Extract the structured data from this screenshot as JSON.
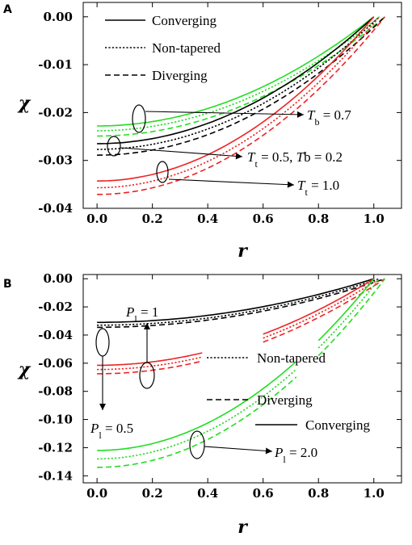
{
  "chart_data": [
    {
      "type": "line",
      "panel": "A",
      "xlabel": "r",
      "ylabel": "χ",
      "xlim": [
        -0.05,
        1.1
      ],
      "ylim": [
        -0.04,
        0.003
      ],
      "xticks": [
        "0.0",
        "0.2",
        "0.4",
        "0.6",
        "0.8",
        "1.0"
      ],
      "yticks": [
        "0.00",
        "-0.01",
        "-0.02",
        "-0.03",
        "-0.04"
      ],
      "legend": [
        {
          "label": "Converging",
          "style": "solid"
        },
        {
          "label": "Non-tapered",
          "style": "dotted"
        },
        {
          "label": "Diverging",
          "style": "dashed"
        }
      ],
      "annotations": [
        {
          "parts": [
            {
              "t": "T",
              "i": true
            },
            {
              "t": "b",
              "sub": true
            },
            {
              "t": " = 0.7"
            }
          ]
        },
        {
          "parts": [
            {
              "t": "T",
              "i": true
            },
            {
              "t": "t",
              "sub": true
            },
            {
              "t": " = 0.5,  "
            },
            {
              "t": "T",
              "i": true
            },
            {
              "t": "b",
              "sub": true
            },
            {
              "t": " = 0.2"
            }
          ]
        },
        {
          "parts": [
            {
              "t": "T",
              "i": true
            },
            {
              "t": "t",
              "sub": true
            },
            {
              "t": " = 1.0"
            }
          ]
        }
      ],
      "colors": {
        "green": "#22dd22",
        "black": "#000000",
        "red": "#ee2222"
      },
      "series": [
        {
          "color": "green",
          "style": "solid",
          "x": [
            0.0,
            1.0
          ],
          "y0": -0.0228
        },
        {
          "color": "green",
          "style": "dotted",
          "x": [
            0.0,
            1.02
          ],
          "y0": -0.0238
        },
        {
          "color": "green",
          "style": "dashed",
          "x": [
            0.0,
            1.04
          ],
          "y0": -0.0249
        },
        {
          "color": "black",
          "style": "solid",
          "x": [
            0.0,
            1.0
          ],
          "y0": -0.0265
        },
        {
          "color": "black",
          "style": "dotted",
          "x": [
            0.0,
            1.02
          ],
          "y0": -0.0277
        },
        {
          "color": "black",
          "style": "dashed",
          "x": [
            0.0,
            1.04
          ],
          "y0": -0.0289
        },
        {
          "color": "red",
          "style": "solid",
          "x": [
            0.0,
            1.0
          ],
          "y0": -0.0343
        },
        {
          "color": "red",
          "style": "dotted",
          "x": [
            0.0,
            1.02
          ],
          "y0": -0.0357
        },
        {
          "color": "red",
          "style": "dashed",
          "x": [
            0.0,
            1.04
          ],
          "y0": -0.0371
        }
      ]
    },
    {
      "type": "line",
      "panel": "B",
      "xlabel": "r",
      "ylabel": "χ",
      "xlim": [
        -0.05,
        1.1
      ],
      "ylim": [
        -0.145,
        0.003
      ],
      "xticks": [
        "0.0",
        "0.2",
        "0.4",
        "0.6",
        "0.8",
        "1.0"
      ],
      "yticks": [
        "0.00",
        "-0.02",
        "-0.04",
        "-0.06",
        "-0.08",
        "-0.10",
        "-0.12",
        "-0.14"
      ],
      "legend": [
        {
          "label": "Non-tapered",
          "style": "dotted"
        },
        {
          "label": "Diverging",
          "style": "dashed"
        },
        {
          "label": "Converging",
          "style": "solid"
        }
      ],
      "annotations": [
        {
          "parts": [
            {
              "t": "P",
              "i": true
            },
            {
              "t": "l",
              "sub": true
            },
            {
              "t": " = 1"
            }
          ]
        },
        {
          "parts": [
            {
              "t": "P",
              "i": true
            },
            {
              "t": "l",
              "sub": true
            },
            {
              "t": " = 0.5"
            }
          ]
        },
        {
          "parts": [
            {
              "t": "P",
              "i": true
            },
            {
              "t": "l",
              "sub": true
            },
            {
              "t": " = 2.0"
            }
          ]
        }
      ],
      "colors": {
        "green": "#22dd22",
        "black": "#000000",
        "red": "#ee2222"
      },
      "series": [
        {
          "color": "black",
          "style": "solid",
          "segments": [
            [
              0.0,
              1.0
            ]
          ],
          "end": 1.0,
          "y0": -0.031
        },
        {
          "color": "black",
          "style": "dotted",
          "segments": [
            [
              0.0,
              1.02
            ]
          ],
          "end": 1.02,
          "y0": -0.033
        },
        {
          "color": "black",
          "style": "dashed",
          "segments": [
            [
              0.0,
              1.04
            ]
          ],
          "end": 1.04,
          "y0": -0.0345
        },
        {
          "color": "red",
          "style": "solid",
          "segments": [
            [
              0.0,
              0.38
            ],
            [
              0.6,
              1.0
            ]
          ],
          "end": 1.0,
          "y0": -0.0615
        },
        {
          "color": "red",
          "style": "dotted",
          "segments": [
            [
              0.0,
              0.38
            ],
            [
              0.6,
              1.02
            ]
          ],
          "end": 1.02,
          "y0": -0.0645
        },
        {
          "color": "red",
          "style": "dashed",
          "segments": [
            [
              0.0,
              0.38
            ],
            [
              0.6,
              1.04
            ]
          ],
          "end": 1.04,
          "y0": -0.0675
        },
        {
          "color": "green",
          "style": "solid",
          "segments": [
            [
              0.0,
              0.72
            ],
            [
              0.8,
              1.0
            ]
          ],
          "end": 1.0,
          "y0": -0.122
        },
        {
          "color": "green",
          "style": "dotted",
          "segments": [
            [
              0.0,
              0.72
            ],
            [
              0.8,
              1.02
            ]
          ],
          "end": 1.02,
          "y0": -0.128
        },
        {
          "color": "green",
          "style": "dashed",
          "segments": [
            [
              0.0,
              0.72
            ],
            [
              0.8,
              1.04
            ]
          ],
          "end": 1.04,
          "y0": -0.134
        }
      ]
    }
  ]
}
